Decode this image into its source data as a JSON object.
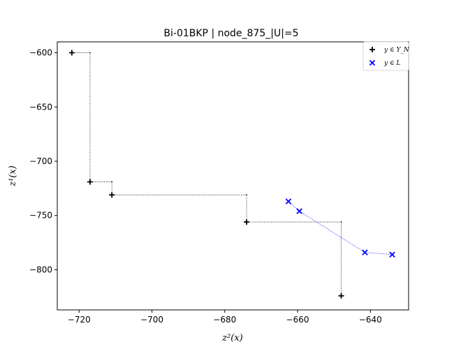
{
  "chart_data": {
    "type": "scatter",
    "title": "Bi-01BKP | node_875_|U|=5",
    "xlabel": "z²(x)",
    "ylabel": "z¹(x)",
    "xlim": [
      -726,
      -629.5
    ],
    "ylim": [
      -837,
      -590
    ],
    "xticks": [
      -720,
      -700,
      -680,
      -660,
      -640
    ],
    "yticks": [
      -600,
      -650,
      -700,
      -750,
      -800
    ],
    "xtick_labels": [
      "−720",
      "−700",
      "−680",
      "−660",
      "−640"
    ],
    "ytick_labels": [
      "−600",
      "−650",
      "−700",
      "−750",
      "−800"
    ],
    "grid": false,
    "legend_position": "top-right",
    "series": [
      {
        "name": "y ∈ Y_N",
        "marker": "plus",
        "color": "#000000",
        "points": [
          [
            -722,
            -600
          ],
          [
            -717,
            -719
          ],
          [
            -711,
            -731
          ],
          [
            -674,
            -756
          ],
          [
            -648,
            -824
          ]
        ]
      },
      {
        "name": "y ∈ L",
        "marker": "x",
        "color": "#0000ff",
        "points": [
          [
            -662.5,
            -737
          ],
          [
            -659.5,
            -746
          ],
          [
            -641.5,
            -784
          ],
          [
            -634,
            -786
          ]
        ]
      }
    ]
  }
}
